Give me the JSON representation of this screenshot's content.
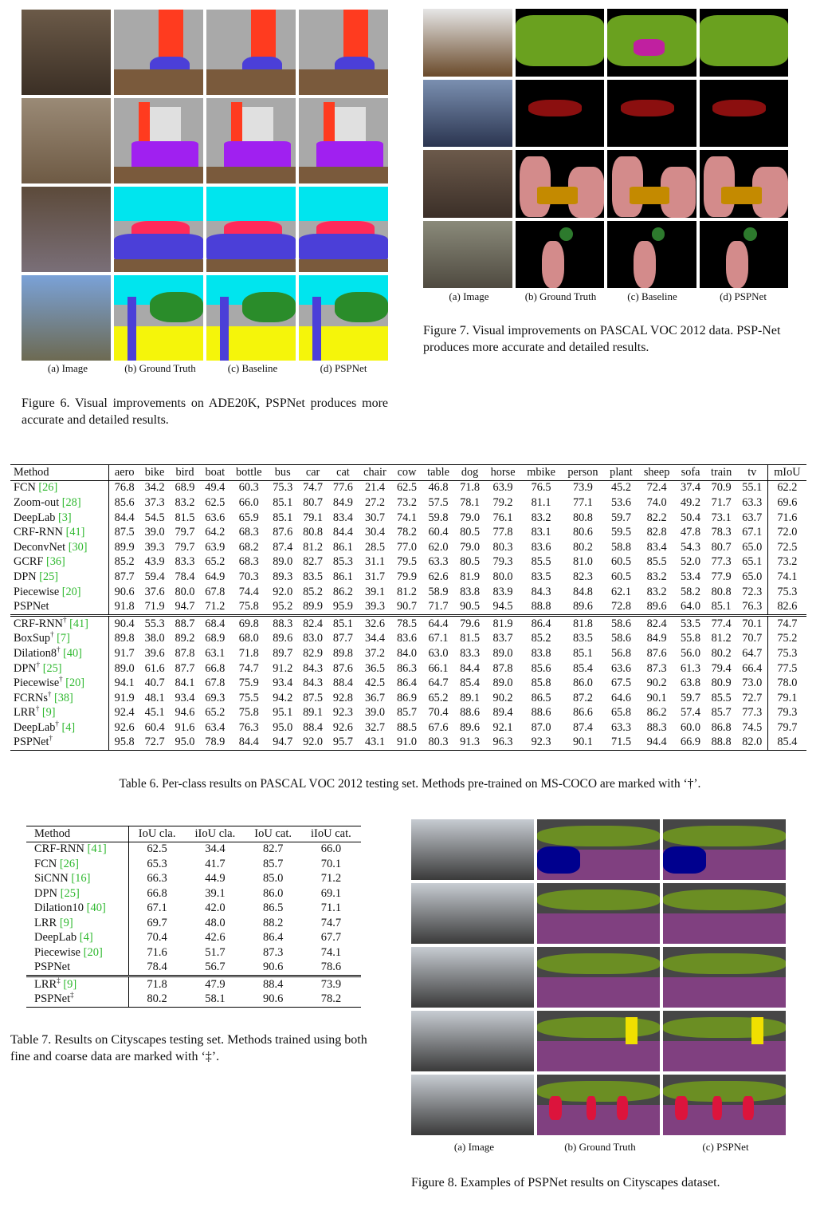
{
  "fig6": {
    "labels": [
      "(a) Image",
      "(b) Ground Truth",
      "(c) Baseline",
      "(d) PSPNet"
    ],
    "caption": "Figure 6. Visual improvements on ADE20K, PSPNet produces more accurate and detailed results.",
    "palette": [
      "#7a5a3c",
      "#ff3b1f",
      "#4b3fd8",
      "#a9a9a9",
      "#2a8c2a"
    ]
  },
  "fig7": {
    "labels": [
      "(a) Image",
      "(b) Ground Truth",
      "(c) Baseline",
      "(d) PSPNet"
    ],
    "caption": "Figure 7. Visual improvements on PASCAL VOC 2012 data. PSP-Net produces more accurate and detailed results.",
    "palette": [
      "#000000",
      "#6aa11f",
      "#8b0f0f",
      "#d38b8b",
      "#c48a00"
    ]
  },
  "table6": {
    "headers": [
      "Method",
      "aero",
      "bike",
      "bird",
      "boat",
      "bottle",
      "bus",
      "car",
      "cat",
      "chair",
      "cow",
      "table",
      "dog",
      "horse",
      "mbike",
      "person",
      "plant",
      "sheep",
      "sofa",
      "train",
      "tv",
      "mIoU"
    ],
    "groups": [
      [
        {
          "name": "FCN",
          "cite": "[26]",
          "sup": "",
          "bold": [],
          "v": [
            "76.8",
            "34.2",
            "68.9",
            "49.4",
            "60.3",
            "75.3",
            "74.7",
            "77.6",
            "21.4",
            "62.5",
            "46.8",
            "71.8",
            "63.9",
            "76.5",
            "73.9",
            "45.2",
            "72.4",
            "37.4",
            "70.9",
            "55.1",
            "62.2"
          ]
        },
        {
          "name": "Zoom-out",
          "cite": "[28]",
          "sup": "",
          "bold": [],
          "v": [
            "85.6",
            "37.3",
            "83.2",
            "62.5",
            "66.0",
            "85.1",
            "80.7",
            "84.9",
            "27.2",
            "73.2",
            "57.5",
            "78.1",
            "79.2",
            "81.1",
            "77.1",
            "53.6",
            "74.0",
            "49.2",
            "71.7",
            "63.3",
            "69.6"
          ]
        },
        {
          "name": "DeepLab",
          "cite": "[3]",
          "sup": "",
          "bold": [],
          "v": [
            "84.4",
            "54.5",
            "81.5",
            "63.6",
            "65.9",
            "85.1",
            "79.1",
            "83.4",
            "30.7",
            "74.1",
            "59.8",
            "79.0",
            "76.1",
            "83.2",
            "80.8",
            "59.7",
            "82.2",
            "50.4",
            "73.1",
            "63.7",
            "71.6"
          ]
        },
        {
          "name": "CRF-RNN",
          "cite": "[41]",
          "sup": "",
          "bold": [],
          "v": [
            "87.5",
            "39.0",
            "79.7",
            "64.2",
            "68.3",
            "87.6",
            "80.8",
            "84.4",
            "30.4",
            "78.2",
            "60.4",
            "80.5",
            "77.8",
            "83.1",
            "80.6",
            "59.5",
            "82.8",
            "47.8",
            "78.3",
            "67.1",
            "72.0"
          ]
        },
        {
          "name": "DeconvNet",
          "cite": "[30]",
          "sup": "",
          "bold": [],
          "v": [
            "89.9",
            "39.3",
            "79.7",
            "63.9",
            "68.2",
            "87.4",
            "81.2",
            "86.1",
            "28.5",
            "77.0",
            "62.0",
            "79.0",
            "80.3",
            "83.6",
            "80.2",
            "58.8",
            "83.4",
            "54.3",
            "80.7",
            "65.0",
            "72.5"
          ]
        },
        {
          "name": "GCRF",
          "cite": "[36]",
          "sup": "",
          "bold": [],
          "v": [
            "85.2",
            "43.9",
            "83.3",
            "65.2",
            "68.3",
            "89.0",
            "82.7",
            "85.3",
            "31.1",
            "79.5",
            "63.3",
            "80.5",
            "79.3",
            "85.5",
            "81.0",
            "60.5",
            "85.5",
            "52.0",
            "77.3",
            "65.1",
            "73.2"
          ]
        },
        {
          "name": "DPN",
          "cite": "[25]",
          "sup": "",
          "bold": [],
          "v": [
            "87.7",
            "59.4",
            "78.4",
            "64.9",
            "70.3",
            "89.3",
            "83.5",
            "86.1",
            "31.7",
            "79.9",
            "62.6",
            "81.9",
            "80.0",
            "83.5",
            "82.3",
            "60.5",
            "83.2",
            "53.4",
            "77.9",
            "65.0",
            "74.1"
          ]
        },
        {
          "name": "Piecewise",
          "cite": "[20]",
          "sup": "",
          "bold": [],
          "v": [
            "90.6",
            "37.6",
            "80.0",
            "67.8",
            "74.4",
            "92.0",
            "85.2",
            "86.2",
            "39.1",
            "81.2",
            "58.9",
            "83.8",
            "83.9",
            "84.3",
            "84.8",
            "62.1",
            "83.2",
            "58.2",
            "80.8",
            "72.3",
            "75.3"
          ]
        },
        {
          "name": "PSPNet",
          "cite": "",
          "sup": "",
          "bold": [
            0,
            1,
            2,
            3,
            4,
            5,
            6,
            7,
            8,
            9,
            10,
            11,
            12,
            13,
            14,
            15,
            16,
            17,
            18,
            19,
            20
          ],
          "v": [
            "91.8",
            "71.9",
            "94.7",
            "71.2",
            "75.8",
            "95.2",
            "89.9",
            "95.9",
            "39.3",
            "90.7",
            "71.7",
            "90.5",
            "94.5",
            "88.8",
            "89.6",
            "72.8",
            "89.6",
            "64.0",
            "85.1",
            "76.3",
            "82.6"
          ]
        }
      ],
      [
        {
          "name": "CRF-RNN",
          "cite": "[41]",
          "sup": "†",
          "bold": [],
          "v": [
            "90.4",
            "55.3",
            "88.7",
            "68.4",
            "69.8",
            "88.3",
            "82.4",
            "85.1",
            "32.6",
            "78.5",
            "64.4",
            "79.6",
            "81.9",
            "86.4",
            "81.8",
            "58.6",
            "82.4",
            "53.5",
            "77.4",
            "70.1",
            "74.7"
          ]
        },
        {
          "name": "BoxSup",
          "cite": "[7]",
          "sup": "†",
          "bold": [],
          "v": [
            "89.8",
            "38.0",
            "89.2",
            "68.9",
            "68.0",
            "89.6",
            "83.0",
            "87.7",
            "34.4",
            "83.6",
            "67.1",
            "81.5",
            "83.7",
            "85.2",
            "83.5",
            "58.6",
            "84.9",
            "55.8",
            "81.2",
            "70.7",
            "75.2"
          ]
        },
        {
          "name": "Dilation8",
          "cite": "[40]",
          "sup": "†",
          "bold": [],
          "v": [
            "91.7",
            "39.6",
            "87.8",
            "63.1",
            "71.8",
            "89.7",
            "82.9",
            "89.8",
            "37.2",
            "84.0",
            "63.0",
            "83.3",
            "89.0",
            "83.8",
            "85.1",
            "56.8",
            "87.6",
            "56.0",
            "80.2",
            "64.7",
            "75.3"
          ]
        },
        {
          "name": "DPN",
          "cite": "[25]",
          "sup": "†",
          "bold": [],
          "v": [
            "89.0",
            "61.6",
            "87.7",
            "66.8",
            "74.7",
            "91.2",
            "84.3",
            "87.6",
            "36.5",
            "86.3",
            "66.1",
            "84.4",
            "87.8",
            "85.6",
            "85.4",
            "63.6",
            "87.3",
            "61.3",
            "79.4",
            "66.4",
            "77.5"
          ]
        },
        {
          "name": "Piecewise",
          "cite": "[20]",
          "sup": "†",
          "bold": [],
          "v": [
            "94.1",
            "40.7",
            "84.1",
            "67.8",
            "75.9",
            "93.4",
            "84.3",
            "88.4",
            "42.5",
            "86.4",
            "64.7",
            "85.4",
            "89.0",
            "85.8",
            "86.0",
            "67.5",
            "90.2",
            "63.8",
            "80.9",
            "73.0",
            "78.0"
          ]
        },
        {
          "name": "FCRNs",
          "cite": "[38]",
          "sup": "†",
          "bold": [],
          "v": [
            "91.9",
            "48.1",
            "93.4",
            "69.3",
            "75.5",
            "94.2",
            "87.5",
            "92.8",
            "36.7",
            "86.9",
            "65.2",
            "89.1",
            "90.2",
            "86.5",
            "87.2",
            "64.6",
            "90.1",
            "59.7",
            "85.5",
            "72.7",
            "79.1"
          ]
        },
        {
          "name": "LRR",
          "cite": "[9]",
          "sup": "†",
          "bold": [],
          "v": [
            "92.4",
            "45.1",
            "94.6",
            "65.2",
            "75.8",
            "95.1",
            "89.1",
            "92.3",
            "39.0",
            "85.7",
            "70.4",
            "88.6",
            "89.4",
            "88.6",
            "86.6",
            "65.8",
            "86.2",
            "57.4",
            "85.7",
            "77.3",
            "79.3"
          ]
        },
        {
          "name": "DeepLab",
          "cite": "[4]",
          "sup": "†",
          "bold": [],
          "v": [
            "92.6",
            "60.4",
            "91.6",
            "63.4",
            "76.3",
            "95.0",
            "88.4",
            "92.6",
            "32.7",
            "88.5",
            "67.6",
            "89.6",
            "92.1",
            "87.0",
            "87.4",
            "63.3",
            "88.3",
            "60.0",
            "86.8",
            "74.5",
            "79.7"
          ]
        },
        {
          "name": "PSPNet",
          "cite": "",
          "sup": "†",
          "bold": [
            0,
            1,
            2,
            3,
            4,
            6,
            7,
            8,
            9,
            10,
            11,
            12,
            13,
            14,
            15,
            16,
            17,
            18,
            19,
            20
          ],
          "v": [
            "95.8",
            "72.7",
            "95.0",
            "78.9",
            "84.4",
            "94.7",
            "92.0",
            "95.7",
            "43.1",
            "91.0",
            "80.3",
            "91.3",
            "96.3",
            "92.3",
            "90.1",
            "71.5",
            "94.4",
            "66.9",
            "88.8",
            "82.0",
            "85.4"
          ]
        }
      ]
    ],
    "caption": "Table 6. Per-class results on PASCAL VOC 2012 testing set. Methods pre-trained on MS-COCO are marked with ‘†’."
  },
  "table7": {
    "headers": [
      "Method",
      "IoU cla.",
      "iIoU cla.",
      "IoU cat.",
      "iIoU cat."
    ],
    "groups": [
      [
        {
          "name": "CRF-RNN",
          "cite": "[41]",
          "sup": "",
          "bold": [],
          "v": [
            "62.5",
            "34.4",
            "82.7",
            "66.0"
          ]
        },
        {
          "name": "FCN",
          "cite": "[26]",
          "sup": "",
          "bold": [],
          "v": [
            "65.3",
            "41.7",
            "85.7",
            "70.1"
          ]
        },
        {
          "name": "SiCNN ",
          "cite": "[16]",
          "sup": "",
          "bold": [],
          "v": [
            "66.3",
            "44.9",
            "85.0",
            "71.2"
          ]
        },
        {
          "name": "DPN",
          "cite": "[25]",
          "sup": "",
          "bold": [],
          "v": [
            "66.8",
            "39.1",
            "86.0",
            "69.1"
          ]
        },
        {
          "name": "Dilation10",
          "cite": "[40]",
          "sup": "",
          "bold": [],
          "v": [
            "67.1",
            "42.0",
            "86.5",
            "71.1"
          ]
        },
        {
          "name": "LRR",
          "cite": "[9]",
          "sup": "",
          "bold": [],
          "v": [
            "69.7",
            "48.0",
            "88.2",
            "74.7"
          ]
        },
        {
          "name": "DeepLab",
          "cite": "[4]",
          "sup": "",
          "bold": [],
          "v": [
            "70.4",
            "42.6",
            "86.4",
            "67.7"
          ]
        },
        {
          "name": "Piecewise",
          "cite": "[20]",
          "sup": "",
          "bold": [],
          "v": [
            "71.6",
            "51.7",
            "87.3",
            "74.1"
          ]
        },
        {
          "name": "PSPNet",
          "cite": "",
          "sup": "",
          "bold": [
            0,
            1,
            2,
            3
          ],
          "v": [
            "78.4",
            "56.7",
            "90.6",
            "78.6"
          ]
        }
      ],
      [
        {
          "name": "LRR",
          "cite": "[9]",
          "sup": "‡",
          "bold": [],
          "v": [
            "71.8",
            "47.9",
            "88.4",
            "73.9"
          ]
        },
        {
          "name": "PSPNet",
          "cite": "",
          "sup": "‡",
          "bold": [
            0,
            1,
            2,
            3
          ],
          "v": [
            "80.2",
            "58.1",
            "90.6",
            "78.2"
          ]
        }
      ]
    ],
    "caption": "Table 7. Results on Cityscapes testing set. Methods trained using both fine and coarse data are marked with ‘‡’."
  },
  "fig8": {
    "labels": [
      "(a) Image",
      "(b) Ground Truth",
      "(c) PSPNet"
    ],
    "caption": "Figure 8. Examples of PSPNet results on Cityscapes dataset.",
    "palette": [
      "#804080",
      "#464646",
      "#6b8e23",
      "#dc143c",
      "#00008e"
    ]
  }
}
